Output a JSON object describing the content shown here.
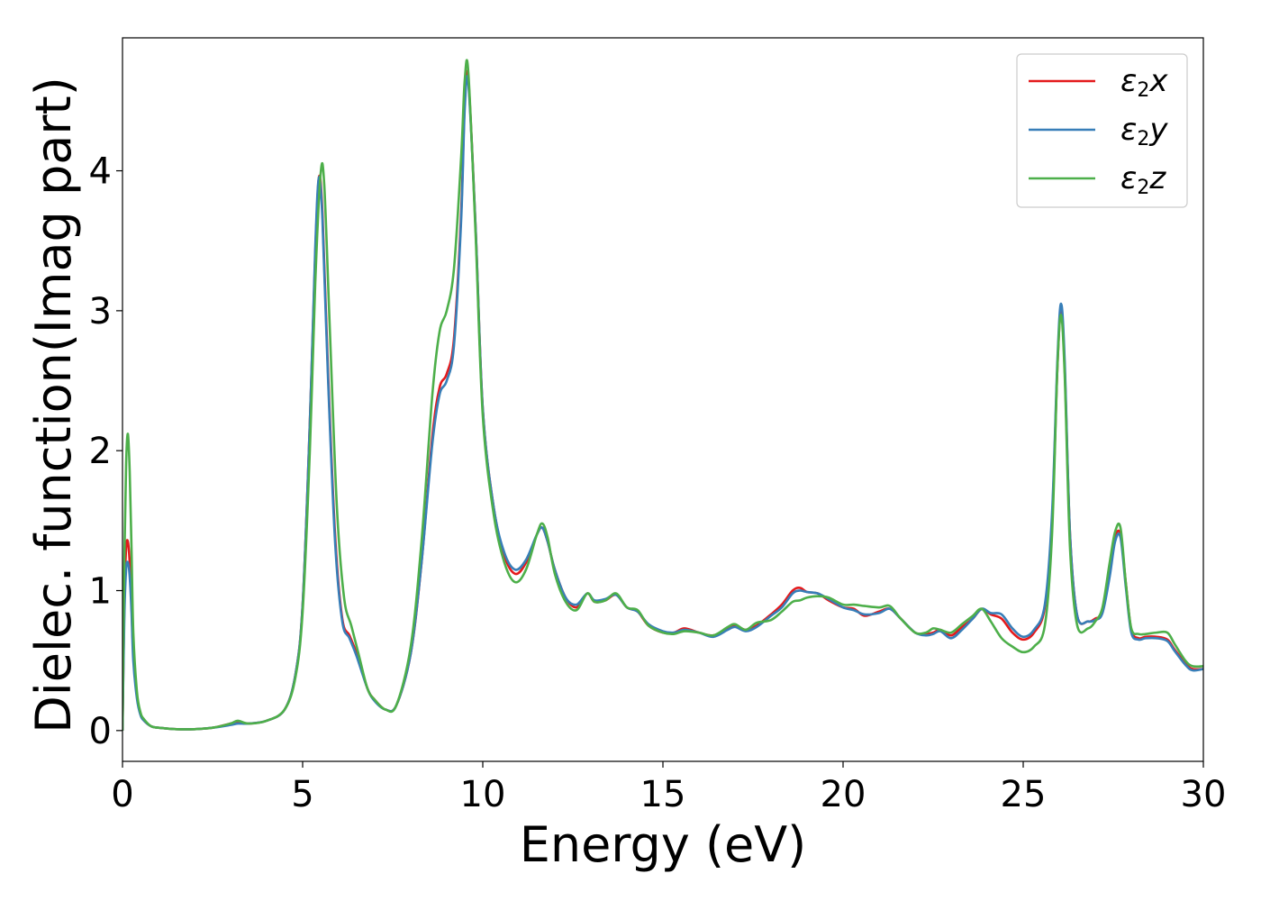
{
  "chart_data": {
    "type": "line",
    "title": "",
    "xlabel": "Energy (eV)",
    "ylabel": "Dielec. function(Imag part)",
    "xlim": [
      0,
      30
    ],
    "ylim": [
      -0.22,
      4.95
    ],
    "xticks": [
      0,
      5,
      10,
      15,
      20,
      25,
      30
    ],
    "xtick_labels": [
      "0",
      "5",
      "10",
      "15",
      "20",
      "25",
      "30"
    ],
    "yticks": [
      0,
      1,
      2,
      3,
      4
    ],
    "ytick_labels": [
      "0",
      "1",
      "2",
      "3",
      "4"
    ],
    "grid": false,
    "legend_position": "top-right",
    "series": [
      {
        "name": "ε₂x",
        "legend_base": "ε",
        "legend_sub": "2",
        "legend_suffix": "x",
        "color": "#e41a1c",
        "x": [
          0,
          0.05,
          0.1,
          0.15,
          0.2,
          0.25,
          0.3,
          0.4,
          0.5,
          0.6,
          0.8,
          1.0,
          1.5,
          2.0,
          2.5,
          3.0,
          3.2,
          3.5,
          4.0,
          4.5,
          4.8,
          5.0,
          5.2,
          5.35,
          5.45,
          5.55,
          5.7,
          5.9,
          6.1,
          6.3,
          6.5,
          6.8,
          7.0,
          7.3,
          7.6,
          8.0,
          8.3,
          8.6,
          8.8,
          9.0,
          9.2,
          9.4,
          9.5,
          9.6,
          9.8,
          10.0,
          10.3,
          10.6,
          10.9,
          11.2,
          11.5,
          11.65,
          11.8,
          12.0,
          12.3,
          12.6,
          12.9,
          13.1,
          13.4,
          13.7,
          14.0,
          14.3,
          14.6,
          15.0,
          15.3,
          15.6,
          16.0,
          16.4,
          16.8,
          17.0,
          17.3,
          17.6,
          18.0,
          18.3,
          18.6,
          18.8,
          19.0,
          19.3,
          19.6,
          20.0,
          20.3,
          20.6,
          21.0,
          21.3,
          21.6,
          22.0,
          22.3,
          22.5,
          22.7,
          23.0,
          23.3,
          23.6,
          23.85,
          24.1,
          24.4,
          24.7,
          25.0,
          25.3,
          25.6,
          25.8,
          25.95,
          26.05,
          26.15,
          26.3,
          26.5,
          26.8,
          27.0,
          27.2,
          27.4,
          27.55,
          27.7,
          27.85,
          28.0,
          28.2,
          28.4,
          28.7,
          29.0,
          29.2,
          29.5,
          29.7,
          30.0
        ],
        "values": [
          0.0,
          0.9,
          1.3,
          1.35,
          1.2,
          0.9,
          0.55,
          0.25,
          0.12,
          0.07,
          0.03,
          0.02,
          0.01,
          0.01,
          0.02,
          0.05,
          0.06,
          0.05,
          0.07,
          0.15,
          0.4,
          0.9,
          2.2,
          3.4,
          3.95,
          3.7,
          2.6,
          1.4,
          0.8,
          0.68,
          0.55,
          0.3,
          0.22,
          0.15,
          0.18,
          0.55,
          1.2,
          2.1,
          2.45,
          2.55,
          2.8,
          3.7,
          4.5,
          4.65,
          3.6,
          2.3,
          1.6,
          1.25,
          1.12,
          1.2,
          1.4,
          1.45,
          1.35,
          1.15,
          0.95,
          0.88,
          0.98,
          0.92,
          0.93,
          0.97,
          0.88,
          0.85,
          0.75,
          0.7,
          0.7,
          0.73,
          0.7,
          0.68,
          0.73,
          0.75,
          0.72,
          0.75,
          0.83,
          0.9,
          1.0,
          1.02,
          0.99,
          0.98,
          0.93,
          0.88,
          0.87,
          0.82,
          0.85,
          0.87,
          0.8,
          0.7,
          0.69,
          0.7,
          0.72,
          0.68,
          0.74,
          0.8,
          0.87,
          0.83,
          0.8,
          0.7,
          0.65,
          0.7,
          0.88,
          1.5,
          2.6,
          3.0,
          2.6,
          1.4,
          0.82,
          0.78,
          0.8,
          0.85,
          1.15,
          1.38,
          1.4,
          1.05,
          0.72,
          0.66,
          0.67,
          0.67,
          0.65,
          0.58,
          0.48,
          0.44,
          0.44
        ]
      },
      {
        "name": "ε₂y",
        "legend_base": "ε",
        "legend_sub": "2",
        "legend_suffix": "y",
        "color": "#377eb8",
        "x": [
          0,
          0.05,
          0.1,
          0.15,
          0.2,
          0.25,
          0.3,
          0.4,
          0.5,
          0.6,
          0.8,
          1.0,
          1.5,
          2.0,
          2.5,
          3.0,
          3.2,
          3.5,
          4.0,
          4.5,
          4.8,
          5.0,
          5.2,
          5.35,
          5.45,
          5.55,
          5.7,
          5.9,
          6.1,
          6.3,
          6.5,
          6.8,
          7.0,
          7.3,
          7.6,
          8.0,
          8.3,
          8.6,
          8.8,
          9.0,
          9.2,
          9.4,
          9.5,
          9.6,
          9.8,
          10.0,
          10.3,
          10.6,
          10.9,
          11.2,
          11.5,
          11.65,
          11.8,
          12.0,
          12.3,
          12.6,
          12.9,
          13.1,
          13.4,
          13.7,
          14.0,
          14.3,
          14.6,
          15.0,
          15.3,
          15.6,
          16.0,
          16.4,
          16.8,
          17.0,
          17.3,
          17.6,
          18.0,
          18.3,
          18.6,
          18.8,
          19.0,
          19.3,
          19.6,
          20.0,
          20.3,
          20.6,
          21.0,
          21.3,
          21.6,
          22.0,
          22.3,
          22.5,
          22.7,
          23.0,
          23.3,
          23.6,
          23.85,
          24.1,
          24.4,
          24.7,
          25.0,
          25.3,
          25.6,
          25.8,
          25.95,
          26.05,
          26.15,
          26.3,
          26.5,
          26.8,
          27.0,
          27.2,
          27.4,
          27.55,
          27.7,
          27.85,
          28.0,
          28.2,
          28.4,
          28.7,
          29.0,
          29.2,
          29.5,
          29.7,
          30.0
        ],
        "values": [
          0.0,
          0.8,
          1.15,
          1.2,
          1.1,
          0.85,
          0.5,
          0.23,
          0.11,
          0.07,
          0.03,
          0.02,
          0.01,
          0.01,
          0.02,
          0.04,
          0.05,
          0.05,
          0.07,
          0.15,
          0.4,
          0.9,
          2.2,
          3.45,
          3.95,
          3.65,
          2.55,
          1.35,
          0.78,
          0.66,
          0.53,
          0.3,
          0.21,
          0.15,
          0.18,
          0.55,
          1.2,
          2.05,
          2.4,
          2.5,
          2.75,
          3.65,
          4.45,
          4.62,
          3.6,
          2.3,
          1.6,
          1.27,
          1.15,
          1.22,
          1.4,
          1.45,
          1.35,
          1.15,
          0.95,
          0.9,
          0.98,
          0.93,
          0.94,
          0.97,
          0.88,
          0.85,
          0.76,
          0.71,
          0.7,
          0.72,
          0.7,
          0.67,
          0.72,
          0.74,
          0.71,
          0.74,
          0.82,
          0.88,
          0.98,
          1.0,
          0.99,
          0.98,
          0.94,
          0.88,
          0.86,
          0.83,
          0.84,
          0.87,
          0.8,
          0.7,
          0.68,
          0.69,
          0.71,
          0.66,
          0.72,
          0.8,
          0.87,
          0.84,
          0.83,
          0.73,
          0.67,
          0.72,
          0.9,
          1.55,
          2.65,
          3.05,
          2.65,
          1.4,
          0.82,
          0.78,
          0.79,
          0.84,
          1.1,
          1.35,
          1.38,
          1.02,
          0.7,
          0.65,
          0.66,
          0.66,
          0.64,
          0.57,
          0.47,
          0.43,
          0.44
        ]
      },
      {
        "name": "ε₂z",
        "legend_base": "ε",
        "legend_sub": "2",
        "legend_suffix": "z",
        "color": "#4daf4a",
        "x": [
          0,
          0.05,
          0.1,
          0.15,
          0.2,
          0.25,
          0.3,
          0.4,
          0.5,
          0.6,
          0.8,
          1.0,
          1.5,
          2.0,
          2.5,
          3.0,
          3.2,
          3.5,
          4.0,
          4.5,
          4.8,
          5.0,
          5.2,
          5.35,
          5.5,
          5.6,
          5.75,
          5.95,
          6.15,
          6.35,
          6.55,
          6.8,
          7.0,
          7.3,
          7.6,
          8.0,
          8.3,
          8.6,
          8.8,
          9.0,
          9.2,
          9.4,
          9.5,
          9.6,
          9.8,
          10.0,
          10.3,
          10.6,
          10.9,
          11.2,
          11.5,
          11.65,
          11.8,
          12.0,
          12.3,
          12.6,
          12.9,
          13.1,
          13.4,
          13.7,
          14.0,
          14.3,
          14.6,
          15.0,
          15.3,
          15.6,
          16.0,
          16.4,
          16.8,
          17.0,
          17.3,
          17.6,
          18.0,
          18.3,
          18.6,
          18.8,
          19.0,
          19.3,
          19.6,
          20.0,
          20.3,
          20.6,
          21.0,
          21.3,
          21.6,
          22.0,
          22.3,
          22.5,
          22.7,
          23.0,
          23.3,
          23.6,
          23.85,
          24.1,
          24.4,
          24.7,
          25.0,
          25.3,
          25.6,
          25.8,
          25.95,
          26.05,
          26.15,
          26.3,
          26.5,
          26.8,
          27.0,
          27.2,
          27.4,
          27.55,
          27.7,
          27.85,
          28.0,
          28.2,
          28.4,
          28.7,
          29.0,
          29.2,
          29.5,
          29.7,
          30.0
        ],
        "values": [
          0.0,
          1.2,
          1.9,
          2.12,
          1.85,
          1.3,
          0.7,
          0.28,
          0.13,
          0.08,
          0.03,
          0.02,
          0.01,
          0.01,
          0.02,
          0.05,
          0.07,
          0.05,
          0.07,
          0.15,
          0.38,
          0.85,
          2.0,
          3.2,
          3.98,
          3.9,
          2.9,
          1.6,
          0.95,
          0.75,
          0.55,
          0.3,
          0.22,
          0.15,
          0.18,
          0.6,
          1.35,
          2.4,
          2.85,
          3.0,
          3.3,
          4.1,
          4.65,
          4.7,
          3.55,
          2.25,
          1.55,
          1.2,
          1.06,
          1.15,
          1.4,
          1.48,
          1.38,
          1.12,
          0.92,
          0.86,
          0.98,
          0.92,
          0.93,
          0.98,
          0.88,
          0.86,
          0.75,
          0.7,
          0.69,
          0.71,
          0.7,
          0.68,
          0.74,
          0.76,
          0.72,
          0.77,
          0.79,
          0.85,
          0.92,
          0.93,
          0.95,
          0.96,
          0.95,
          0.9,
          0.9,
          0.89,
          0.88,
          0.89,
          0.8,
          0.7,
          0.7,
          0.73,
          0.72,
          0.7,
          0.76,
          0.82,
          0.87,
          0.78,
          0.66,
          0.6,
          0.56,
          0.6,
          0.75,
          1.4,
          2.6,
          2.97,
          2.55,
          1.3,
          0.75,
          0.73,
          0.78,
          0.88,
          1.2,
          1.42,
          1.45,
          1.05,
          0.73,
          0.69,
          0.69,
          0.7,
          0.7,
          0.62,
          0.5,
          0.46,
          0.46
        ]
      }
    ]
  }
}
